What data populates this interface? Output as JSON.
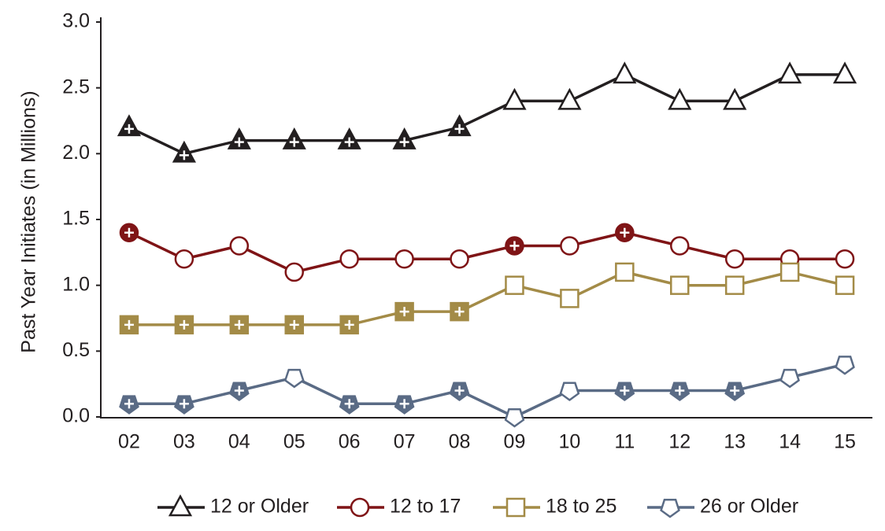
{
  "chart_data": {
    "type": "line",
    "y_label": "Past Year Initiates (in Millions)",
    "categories": [
      "02",
      "03",
      "04",
      "05",
      "06",
      "07",
      "08",
      "09",
      "10",
      "11",
      "12",
      "13",
      "14",
      "15"
    ],
    "ylim": [
      0,
      3
    ],
    "yticks": [
      {
        "value": 0,
        "label": "0.0"
      },
      0.5,
      {
        "value": 1,
        "label": "1.0"
      },
      1.5,
      {
        "value": 2,
        "label": "2.0"
      },
      2.5,
      {
        "value": 3,
        "label": "3.0"
      }
    ],
    "series": [
      {
        "name": "12 or Older",
        "color": "#231f20",
        "marker": "triangle",
        "values": [
          2.2,
          2.0,
          2.1,
          2.1,
          2.1,
          2.1,
          2.2,
          2.4,
          2.4,
          2.6,
          2.4,
          2.4,
          2.6,
          2.6
        ],
        "filled": [
          true,
          true,
          true,
          true,
          true,
          true,
          true,
          false,
          false,
          false,
          false,
          false,
          false,
          false
        ]
      },
      {
        "name": "12 to 17",
        "color": "#7f1416",
        "marker": "circle",
        "values": [
          1.4,
          1.2,
          1.3,
          1.1,
          1.2,
          1.2,
          1.2,
          1.3,
          1.3,
          1.4,
          1.3,
          1.2,
          1.2,
          1.2
        ],
        "filled": [
          true,
          false,
          false,
          false,
          false,
          false,
          false,
          true,
          false,
          true,
          false,
          false,
          false,
          false
        ]
      },
      {
        "name": "18 to 25",
        "color": "#a38b47",
        "marker": "square",
        "values": [
          0.7,
          0.7,
          0.7,
          0.7,
          0.7,
          0.8,
          0.8,
          1.0,
          0.9,
          1.1,
          1.0,
          1.0,
          1.1,
          1.0
        ],
        "filled": [
          true,
          true,
          true,
          true,
          true,
          true,
          true,
          false,
          false,
          false,
          false,
          false,
          false,
          false
        ]
      },
      {
        "name": "26 or Older",
        "color": "#5a6b85",
        "marker": "pentagon",
        "values": [
          0.1,
          0.1,
          0.2,
          0.3,
          0.1,
          0.1,
          0.2,
          0.0,
          0.2,
          0.2,
          0.2,
          0.2,
          0.3,
          0.4
        ],
        "filled": [
          true,
          true,
          true,
          false,
          true,
          true,
          true,
          false,
          false,
          true,
          true,
          true,
          false,
          false
        ]
      }
    ]
  }
}
